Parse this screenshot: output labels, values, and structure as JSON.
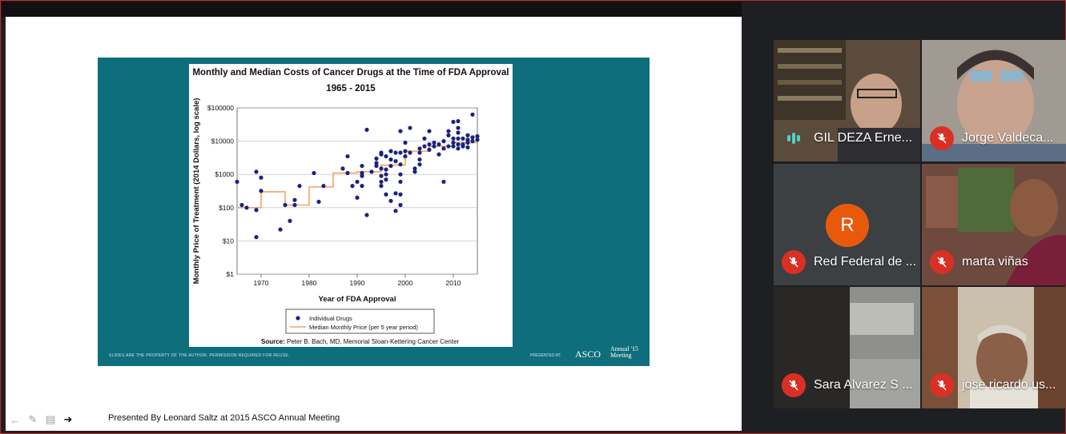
{
  "presentation": {
    "presenter_note": "Presented By Leonard Saltz at 2015 ASCO Annual Meeting",
    "slide_footer_left": "SLIDES ARE THE PROPERTY OF THE AUTHOR. PERMISSION REQUIRED FOR REUSE.",
    "slide_footer_presented": "PRESENTED AT:",
    "logo_text": "ASCO",
    "annual_text_1": "Annual '15",
    "annual_text_2": "Meeting",
    "toolbar_icons": [
      "arrow-left-icon",
      "pencil-icon",
      "comment-icon",
      "arrow-right-icon"
    ]
  },
  "chart_data": {
    "type": "scatter",
    "title": "Monthly and Median Costs of Cancer Drugs at the Time of FDA Approval",
    "subtitle": "1965 - 2015",
    "xlabel": "Year of FDA Approval",
    "ylabel": "Monthly Price of Treatment (2014 Dollars, log scale)",
    "log_scale_y": true,
    "xlim": [
      1965,
      2015
    ],
    "ylim": [
      1,
      100000
    ],
    "x_ticks": [
      1970,
      1980,
      1990,
      2000,
      2010
    ],
    "y_ticks": [
      1,
      10,
      100,
      1000,
      10000,
      100000
    ],
    "y_tick_labels": [
      "$1",
      "$10",
      "$100",
      "$1000",
      "$10000",
      "$100000"
    ],
    "grid": true,
    "legend_position": "bottom",
    "source": "Source: Peter B. Bach, MD, Memorial Sloan-Kettering Cancer Center",
    "source_label": "Source:",
    "source_text": "Peter B. Bach, MD, Memorial Sloan-Kettering Cancer Center",
    "colors": {
      "points": "#1a237e",
      "median": "#f4a460"
    },
    "series": [
      {
        "name": "Individual Drugs",
        "kind": "scatter",
        "points": [
          [
            1965,
            600
          ],
          [
            1966,
            120
          ],
          [
            1967,
            100
          ],
          [
            1969,
            1200
          ],
          [
            1969,
            85
          ],
          [
            1969,
            13
          ],
          [
            1970,
            800
          ],
          [
            1970,
            320
          ],
          [
            1974,
            22
          ],
          [
            1975,
            120
          ],
          [
            1976,
            40
          ],
          [
            1977,
            120
          ],
          [
            1977,
            170
          ],
          [
            1978,
            450
          ],
          [
            1981,
            1100
          ],
          [
            1982,
            150
          ],
          [
            1983,
            450
          ],
          [
            1987,
            1500
          ],
          [
            1988,
            1100
          ],
          [
            1988,
            3500
          ],
          [
            1989,
            450
          ],
          [
            1990,
            600
          ],
          [
            1990,
            200
          ],
          [
            1991,
            1800
          ],
          [
            1991,
            1100
          ],
          [
            1991,
            900
          ],
          [
            1991,
            450
          ],
          [
            1992,
            22000
          ],
          [
            1992,
            60
          ],
          [
            1993,
            1200
          ],
          [
            1994,
            2200
          ],
          [
            1994,
            1800
          ],
          [
            1994,
            3000
          ],
          [
            1995,
            4500
          ],
          [
            1995,
            4000
          ],
          [
            1995,
            1500
          ],
          [
            1995,
            900
          ],
          [
            1995,
            600
          ],
          [
            1995,
            450
          ],
          [
            1996,
            3500
          ],
          [
            1996,
            1400
          ],
          [
            1996,
            1000
          ],
          [
            1996,
            700
          ],
          [
            1996,
            250
          ],
          [
            1997,
            5000
          ],
          [
            1997,
            2800
          ],
          [
            1997,
            1800
          ],
          [
            1997,
            160
          ],
          [
            1998,
            2500
          ],
          [
            1998,
            4500
          ],
          [
            1998,
            270
          ],
          [
            1998,
            80
          ],
          [
            1999,
            20000
          ],
          [
            1999,
            4500
          ],
          [
            1999,
            2000
          ],
          [
            1999,
            1000
          ],
          [
            1999,
            600
          ],
          [
            1999,
            250
          ],
          [
            1999,
            120
          ],
          [
            2000,
            9000
          ],
          [
            2000,
            5000
          ],
          [
            2000,
            3500
          ],
          [
            2001,
            25000
          ],
          [
            2001,
            4500
          ],
          [
            2002,
            1500
          ],
          [
            2002,
            1200
          ],
          [
            2003,
            6000
          ],
          [
            2003,
            4500
          ],
          [
            2003,
            2800
          ],
          [
            2003,
            2000
          ],
          [
            2004,
            12000
          ],
          [
            2004,
            7000
          ],
          [
            2005,
            20000
          ],
          [
            2005,
            8000
          ],
          [
            2005,
            5500
          ],
          [
            2006,
            9000
          ],
          [
            2006,
            7000
          ],
          [
            2007,
            8000
          ],
          [
            2007,
            4000
          ],
          [
            2008,
            10000
          ],
          [
            2008,
            6000
          ],
          [
            2008,
            600
          ],
          [
            2009,
            20000
          ],
          [
            2009,
            15000
          ],
          [
            2009,
            7000
          ],
          [
            2010,
            38000
          ],
          [
            2010,
            12000
          ],
          [
            2010,
            9000
          ],
          [
            2010,
            7000
          ],
          [
            2011,
            40000
          ],
          [
            2011,
            25000
          ],
          [
            2011,
            18000
          ],
          [
            2011,
            12000
          ],
          [
            2011,
            8000
          ],
          [
            2011,
            6000
          ],
          [
            2012,
            12000
          ],
          [
            2012,
            8000
          ],
          [
            2012,
            7000
          ],
          [
            2013,
            15000
          ],
          [
            2013,
            11000
          ],
          [
            2013,
            9000
          ],
          [
            2013,
            6500
          ],
          [
            2014,
            63000
          ],
          [
            2014,
            13000
          ],
          [
            2014,
            10000
          ],
          [
            2015,
            14000
          ],
          [
            2015,
            11000
          ]
        ]
      },
      {
        "name": "Median Monthly Price (per 5 year period)",
        "kind": "step",
        "steps": [
          [
            1965,
            100
          ],
          [
            1970,
            300
          ],
          [
            1975,
            120
          ],
          [
            1980,
            130
          ],
          [
            1980,
            420
          ],
          [
            1985,
            1100
          ],
          [
            1990,
            1200
          ],
          [
            1995,
            1900
          ],
          [
            2000,
            5000
          ],
          [
            2005,
            7000
          ],
          [
            2010,
            9000
          ],
          [
            2015,
            9000
          ]
        ]
      }
    ]
  },
  "participants": [
    {
      "name": "GIL DEZA Erne...",
      "status": "speaking",
      "bg": "video"
    },
    {
      "name": "Jorge Valdeca...",
      "status": "muted",
      "bg": "video"
    },
    {
      "name": "Red Federal de ...",
      "status": "muted",
      "bg": "avatar",
      "initial": "R",
      "avatar_color": "#e8590c"
    },
    {
      "name": "marta viñas",
      "status": "muted",
      "bg": "video"
    },
    {
      "name": "Sara Alvarez S ...",
      "status": "muted",
      "bg": "video"
    },
    {
      "name": "jose ricardo us...",
      "status": "muted",
      "bg": "video"
    }
  ]
}
